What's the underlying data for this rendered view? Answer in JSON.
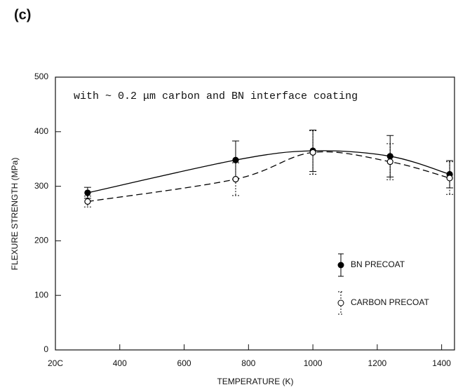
{
  "panel_label": "(c)",
  "chart_data": {
    "type": "errorbar-line",
    "annotation": "with ~ 0.2 μm carbon and BN interface coating",
    "x_label": "TEMPERATURE (K)",
    "y_label": "FLEXURE STRENGTH (MPa)",
    "xlim": [
      200,
      1440
    ],
    "ylim": [
      0,
      500
    ],
    "xticks": [
      {
        "value": 200,
        "label": "20C"
      },
      400,
      600,
      800,
      1000,
      1200,
      1400
    ],
    "yticks": [
      0,
      100,
      200,
      300,
      400,
      500
    ],
    "legend": "lower right",
    "series": [
      {
        "name": "BN PRECOAT",
        "color": "#000000",
        "marker_fill": "#000000",
        "dashed": false,
        "x": [
          300,
          760,
          1000,
          1240,
          1425
        ],
        "values": [
          288,
          348,
          365,
          355,
          322
        ],
        "errors": [
          10,
          35,
          38,
          38,
          25
        ]
      },
      {
        "name": "CARBON PRECOAT",
        "color": "#000000",
        "marker_fill": "#ffffff",
        "dashed": true,
        "x": [
          300,
          760,
          1000,
          1240,
          1425
        ],
        "values": [
          272,
          313,
          362,
          345,
          315
        ],
        "errors": [
          10,
          30,
          40,
          33,
          30
        ]
      }
    ]
  }
}
